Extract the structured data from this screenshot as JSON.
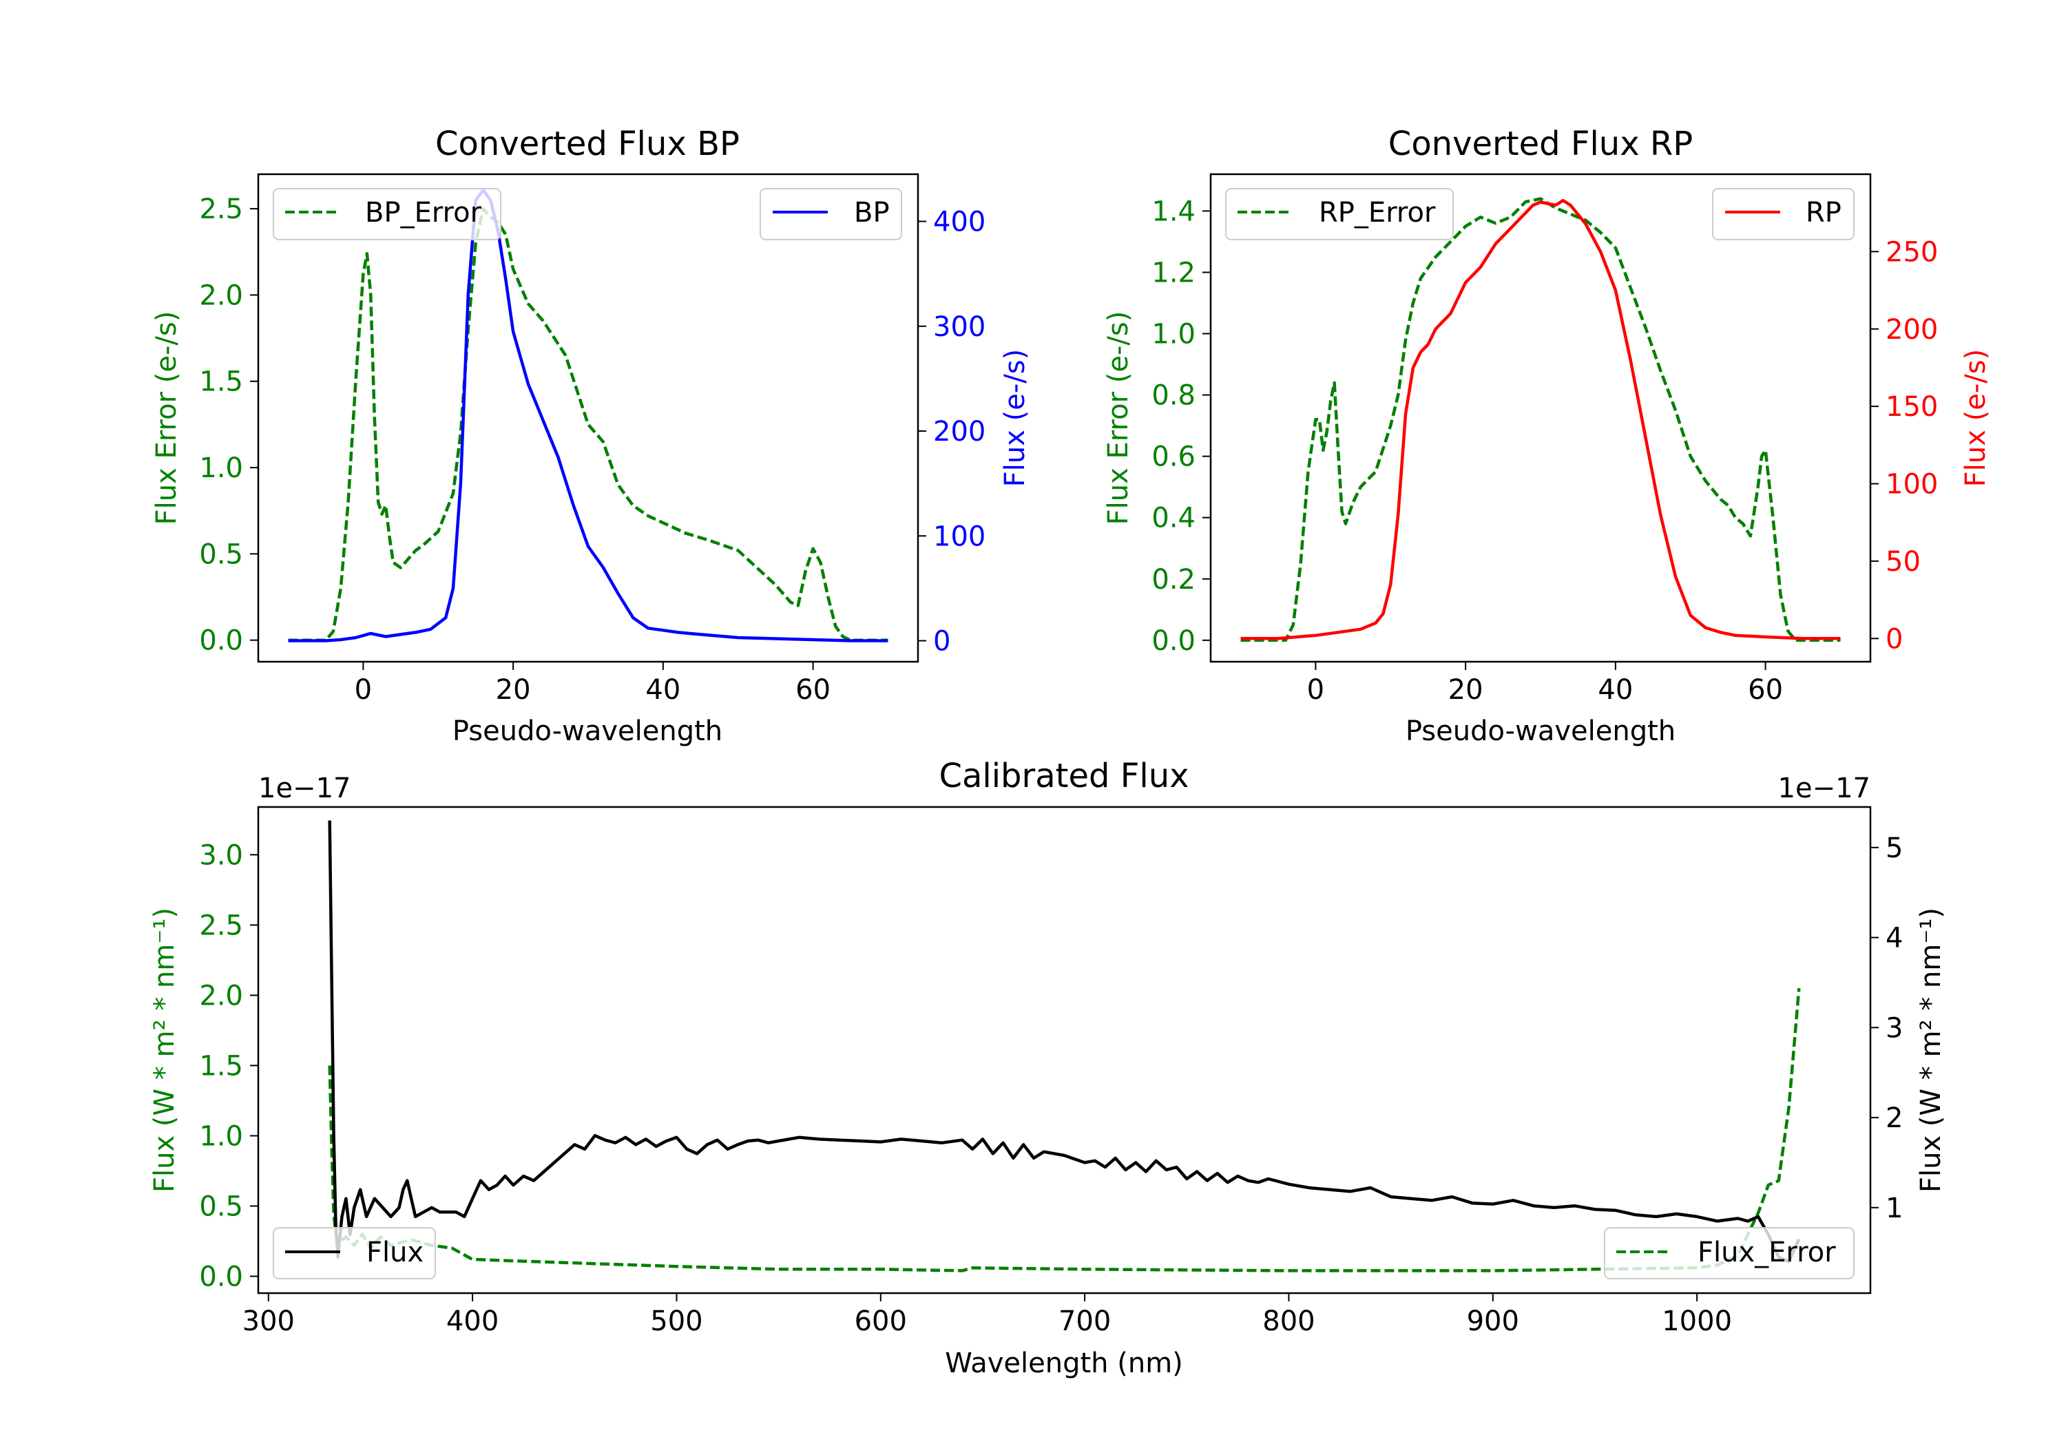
{
  "colors": {
    "green": "#008000",
    "blue": "#0000ff",
    "red": "#ff0000",
    "black": "#000000"
  },
  "chart_data": [
    {
      "id": "bp",
      "type": "line",
      "title": "Converted Flux BP",
      "xlabel": "Pseudo-wavelength",
      "ylabel_left": "Flux Error (e-/s)",
      "ylabel_right": "Flux (e-/s)",
      "xlim": [
        -14,
        74
      ],
      "ylim_left": [
        -0.125,
        2.7
      ],
      "ylim_right": [
        -20,
        445
      ],
      "xticks": [
        0,
        20,
        40,
        60
      ],
      "yticks_left": [
        "0.0",
        "0.5",
        "1.0",
        "1.5",
        "2.0",
        "2.5"
      ],
      "yticks_right": [
        "0",
        "100",
        "200",
        "300",
        "400"
      ],
      "legend_left": "BP_Error",
      "legend_right": "BP",
      "error_x": [
        -10,
        -5,
        -4,
        -3,
        -2,
        -1,
        0,
        0.5,
        1,
        1.5,
        2,
        2.5,
        3,
        3.5,
        4,
        5,
        6,
        7,
        8,
        10,
        12,
        13,
        14,
        15,
        16,
        17,
        18,
        19,
        20,
        22,
        24,
        27,
        30,
        32,
        34,
        36,
        38,
        40,
        43,
        46,
        50,
        53,
        55,
        57,
        58,
        59,
        60,
        61,
        62,
        63,
        64,
        65,
        66,
        70
      ],
      "error_y": [
        0.0,
        0.0,
        0.05,
        0.3,
        0.8,
        1.5,
        2.12,
        2.24,
        2.0,
        1.3,
        0.8,
        0.73,
        0.78,
        0.6,
        0.45,
        0.42,
        0.47,
        0.52,
        0.55,
        0.63,
        0.85,
        1.2,
        1.8,
        2.3,
        2.5,
        2.45,
        2.42,
        2.35,
        2.15,
        1.95,
        1.85,
        1.65,
        1.25,
        1.15,
        0.9,
        0.78,
        0.72,
        0.68,
        0.62,
        0.58,
        0.52,
        0.4,
        0.32,
        0.22,
        0.2,
        0.4,
        0.53,
        0.45,
        0.25,
        0.08,
        0.02,
        0.0,
        0.0,
        0.0
      ],
      "flux_x": [
        -10,
        -5,
        -3,
        -1,
        1,
        3,
        5,
        7,
        9,
        11,
        12,
        13,
        14,
        15,
        16,
        17,
        18,
        19,
        20,
        22,
        24,
        26,
        28,
        30,
        32,
        34,
        36,
        38,
        40,
        42,
        45,
        50,
        55,
        60,
        65,
        70
      ],
      "flux_y": [
        0,
        0,
        1,
        3,
        7,
        4,
        6,
        8,
        11,
        22,
        50,
        150,
        330,
        420,
        430,
        420,
        390,
        345,
        295,
        245,
        210,
        175,
        130,
        90,
        70,
        45,
        22,
        12,
        10,
        8,
        6,
        3,
        2,
        1,
        0,
        0
      ]
    },
    {
      "id": "rp",
      "type": "line",
      "title": "Converted Flux RP",
      "xlabel": "Pseudo-wavelength",
      "ylabel_left": "Flux Error (e-/s)",
      "ylabel_right": "Flux (e-/s)",
      "xlim": [
        -14,
        74
      ],
      "ylim_left": [
        -0.07,
        1.52
      ],
      "ylim_right": [
        -15,
        300
      ],
      "xticks": [
        0,
        20,
        40,
        60
      ],
      "yticks_left": [
        "0.0",
        "0.2",
        "0.4",
        "0.6",
        "0.8",
        "1.0",
        "1.2",
        "1.4"
      ],
      "yticks_right": [
        "0",
        "50",
        "100",
        "150",
        "200",
        "250"
      ],
      "legend_left": "RP_Error",
      "legend_right": "RP",
      "error_x": [
        -10,
        -4,
        -3,
        -2,
        -1,
        0,
        0.5,
        1,
        1.5,
        2,
        2.5,
        3,
        3.5,
        4,
        5,
        6,
        8,
        10,
        11,
        12,
        13,
        14,
        16,
        18,
        20,
        22,
        24,
        26,
        28,
        30,
        32,
        34,
        36,
        38,
        40,
        42,
        44,
        46,
        48,
        50,
        52,
        54,
        55,
        56,
        57,
        58,
        59,
        59.5,
        60,
        61,
        62,
        63,
        64,
        70
      ],
      "error_y": [
        0.0,
        0.0,
        0.05,
        0.25,
        0.55,
        0.72,
        0.72,
        0.62,
        0.68,
        0.78,
        0.84,
        0.62,
        0.42,
        0.38,
        0.45,
        0.5,
        0.55,
        0.7,
        0.8,
        0.98,
        1.1,
        1.18,
        1.25,
        1.3,
        1.35,
        1.38,
        1.36,
        1.38,
        1.43,
        1.44,
        1.41,
        1.39,
        1.37,
        1.33,
        1.28,
        1.15,
        1.02,
        0.88,
        0.75,
        0.6,
        0.52,
        0.46,
        0.44,
        0.4,
        0.38,
        0.34,
        0.5,
        0.6,
        0.62,
        0.4,
        0.15,
        0.03,
        0.0,
        0.0
      ],
      "flux_x": [
        -10,
        -5,
        0,
        3,
        6,
        8,
        9,
        10,
        11,
        12,
        13,
        14,
        15,
        16,
        18,
        20,
        22,
        24,
        26,
        28,
        29,
        30,
        32,
        33,
        34,
        36,
        38,
        40,
        42,
        44,
        46,
        48,
        50,
        52,
        54,
        56,
        60,
        65,
        70
      ],
      "flux_y": [
        0,
        0,
        2,
        4,
        6,
        10,
        16,
        35,
        80,
        145,
        175,
        185,
        190,
        200,
        210,
        230,
        240,
        255,
        265,
        275,
        280,
        282,
        280,
        283,
        280,
        268,
        250,
        225,
        180,
        130,
        80,
        40,
        15,
        7,
        4,
        2,
        1,
        0,
        0
      ]
    },
    {
      "id": "calibrated",
      "type": "line",
      "title": "Calibrated Flux",
      "xlabel": "Wavelength (nm)",
      "ylabel_left": "Flux (W * m² * nm⁻¹)",
      "ylabel_right": "Flux (W * m² * nm⁻¹)",
      "offset_left": "1e−17",
      "offset_right": "1e−17",
      "xlim": [
        295,
        1085
      ],
      "ylim_left": [
        -0.12,
        3.34
      ],
      "ylim_right": [
        0.05,
        5.45
      ],
      "xticks": [
        300,
        400,
        500,
        600,
        700,
        800,
        900,
        1000
      ],
      "yticks_left": [
        "0.0",
        "0.5",
        "1.0",
        "1.5",
        "2.0",
        "2.5",
        "3.0"
      ],
      "yticks_right": [
        "1",
        "2",
        "3",
        "4",
        "5"
      ],
      "legend_left": "Flux",
      "legend_right": "Flux_Error",
      "flux_x": [
        330,
        331,
        332,
        333,
        334,
        336,
        338,
        340,
        342,
        345,
        348,
        352,
        356,
        360,
        364,
        366,
        368,
        370,
        372,
        376,
        380,
        384,
        388,
        392,
        396,
        400,
        404,
        408,
        412,
        416,
        420,
        425,
        430,
        435,
        440,
        445,
        450,
        455,
        460,
        465,
        470,
        475,
        480,
        485,
        490,
        495,
        500,
        505,
        510,
        515,
        520,
        525,
        530,
        535,
        540,
        545,
        550,
        560,
        570,
        580,
        590,
        600,
        610,
        620,
        630,
        640,
        645,
        650,
        655,
        660,
        665,
        670,
        675,
        680,
        690,
        700,
        705,
        710,
        715,
        720,
        725,
        730,
        735,
        740,
        745,
        750,
        755,
        760,
        765,
        770,
        775,
        780,
        785,
        790,
        800,
        810,
        820,
        830,
        840,
        850,
        860,
        870,
        880,
        890,
        900,
        910,
        920,
        930,
        940,
        950,
        960,
        970,
        980,
        990,
        1000,
        1010,
        1020,
        1025,
        1030,
        1035,
        1040,
        1045,
        1050
      ],
      "flux_y": [
        5.3,
        3.5,
        1.8,
        0.8,
        0.45,
        0.9,
        1.1,
        0.7,
        1.0,
        1.2,
        0.9,
        1.1,
        1.0,
        0.9,
        1.0,
        1.2,
        1.3,
        1.1,
        0.9,
        0.95,
        1.0,
        0.95,
        0.95,
        0.95,
        0.9,
        1.1,
        1.3,
        1.2,
        1.25,
        1.35,
        1.25,
        1.35,
        1.3,
        1.4,
        1.5,
        1.6,
        1.7,
        1.65,
        1.8,
        1.75,
        1.72,
        1.78,
        1.7,
        1.76,
        1.68,
        1.74,
        1.78,
        1.65,
        1.6,
        1.7,
        1.75,
        1.65,
        1.7,
        1.74,
        1.75,
        1.72,
        1.74,
        1.78,
        1.76,
        1.75,
        1.74,
        1.73,
        1.76,
        1.74,
        1.72,
        1.75,
        1.65,
        1.76,
        1.6,
        1.72,
        1.55,
        1.7,
        1.55,
        1.62,
        1.58,
        1.5,
        1.52,
        1.45,
        1.55,
        1.42,
        1.5,
        1.4,
        1.52,
        1.42,
        1.45,
        1.32,
        1.4,
        1.3,
        1.38,
        1.28,
        1.35,
        1.3,
        1.28,
        1.32,
        1.26,
        1.22,
        1.2,
        1.18,
        1.22,
        1.12,
        1.1,
        1.08,
        1.12,
        1.05,
        1.04,
        1.08,
        1.02,
        1.0,
        1.02,
        0.98,
        0.97,
        0.92,
        0.9,
        0.93,
        0.9,
        0.85,
        0.88,
        0.85,
        0.9,
        0.7,
        0.45,
        0.4,
        0.65
      ]
    }
  ],
  "calibrated_error": {
    "x": [
      330,
      331,
      332,
      333,
      335,
      338,
      342,
      346,
      350,
      355,
      360,
      370,
      380,
      390,
      400,
      420,
      440,
      460,
      500,
      550,
      600,
      640,
      645,
      700,
      800,
      900,
      950,
      1000,
      1010,
      1020,
      1025,
      1030,
      1035,
      1040,
      1045,
      1050
    ],
    "y": [
      1.5,
      0.9,
      0.45,
      0.3,
      0.25,
      0.28,
      0.22,
      0.3,
      0.2,
      0.28,
      0.22,
      0.26,
      0.22,
      0.2,
      0.12,
      0.11,
      0.1,
      0.09,
      0.07,
      0.05,
      0.05,
      0.04,
      0.06,
      0.05,
      0.04,
      0.04,
      0.05,
      0.06,
      0.08,
      0.15,
      0.3,
      0.45,
      0.65,
      0.68,
      1.2,
      2.05
    ]
  }
}
